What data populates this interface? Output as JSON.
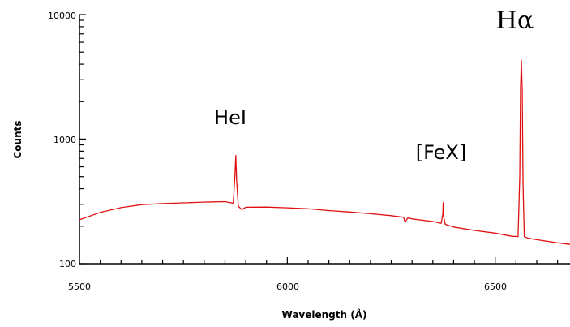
{
  "chart_data": {
    "type": "line",
    "title": "",
    "xlabel": "Wavelength (Å)",
    "ylabel": "Counts",
    "x_ticks": [
      "5500",
      "6000",
      "6500"
    ],
    "y_ticks": [
      "100",
      "1000",
      "10000"
    ],
    "xlim": [
      5500,
      6680
    ],
    "ylim": [
      100,
      10000
    ],
    "y_scale": "log",
    "grid": false,
    "line_color": "#e01010",
    "annotations": [
      {
        "text": "HeI",
        "x": 5876
      },
      {
        "text": "[FeX]",
        "x": 6375
      },
      {
        "text": "Hα",
        "x": 6563
      }
    ],
    "series": [
      {
        "x": [
          5500,
          5550,
          5600,
          5650,
          5700,
          5750,
          5800,
          5850,
          5870,
          5874,
          5876,
          5878,
          5882,
          5890,
          5900,
          5950,
          6000,
          6050,
          6100,
          6150,
          6200,
          6250,
          6280,
          6283,
          6290,
          6300,
          6350,
          6370,
          6374,
          6375,
          6376,
          6380,
          6400,
          6450,
          6500,
          6540,
          6555,
          6559,
          6561,
          6563,
          6565,
          6567,
          6570,
          6580,
          6600,
          6650,
          6680
        ],
        "y": [
          225,
          258,
          282,
          298,
          304,
          308,
          312,
          315,
          306,
          520,
          740,
          470,
          290,
          272,
          284,
          285,
          281,
          276,
          267,
          260,
          252,
          243,
          236,
          216,
          233,
          229,
          218,
          211,
          250,
          310,
          240,
          207,
          197,
          185,
          176,
          166,
          165,
          500,
          2600,
          4300,
          2500,
          420,
          165,
          160,
          156,
          147,
          143
        ]
      }
    ]
  }
}
